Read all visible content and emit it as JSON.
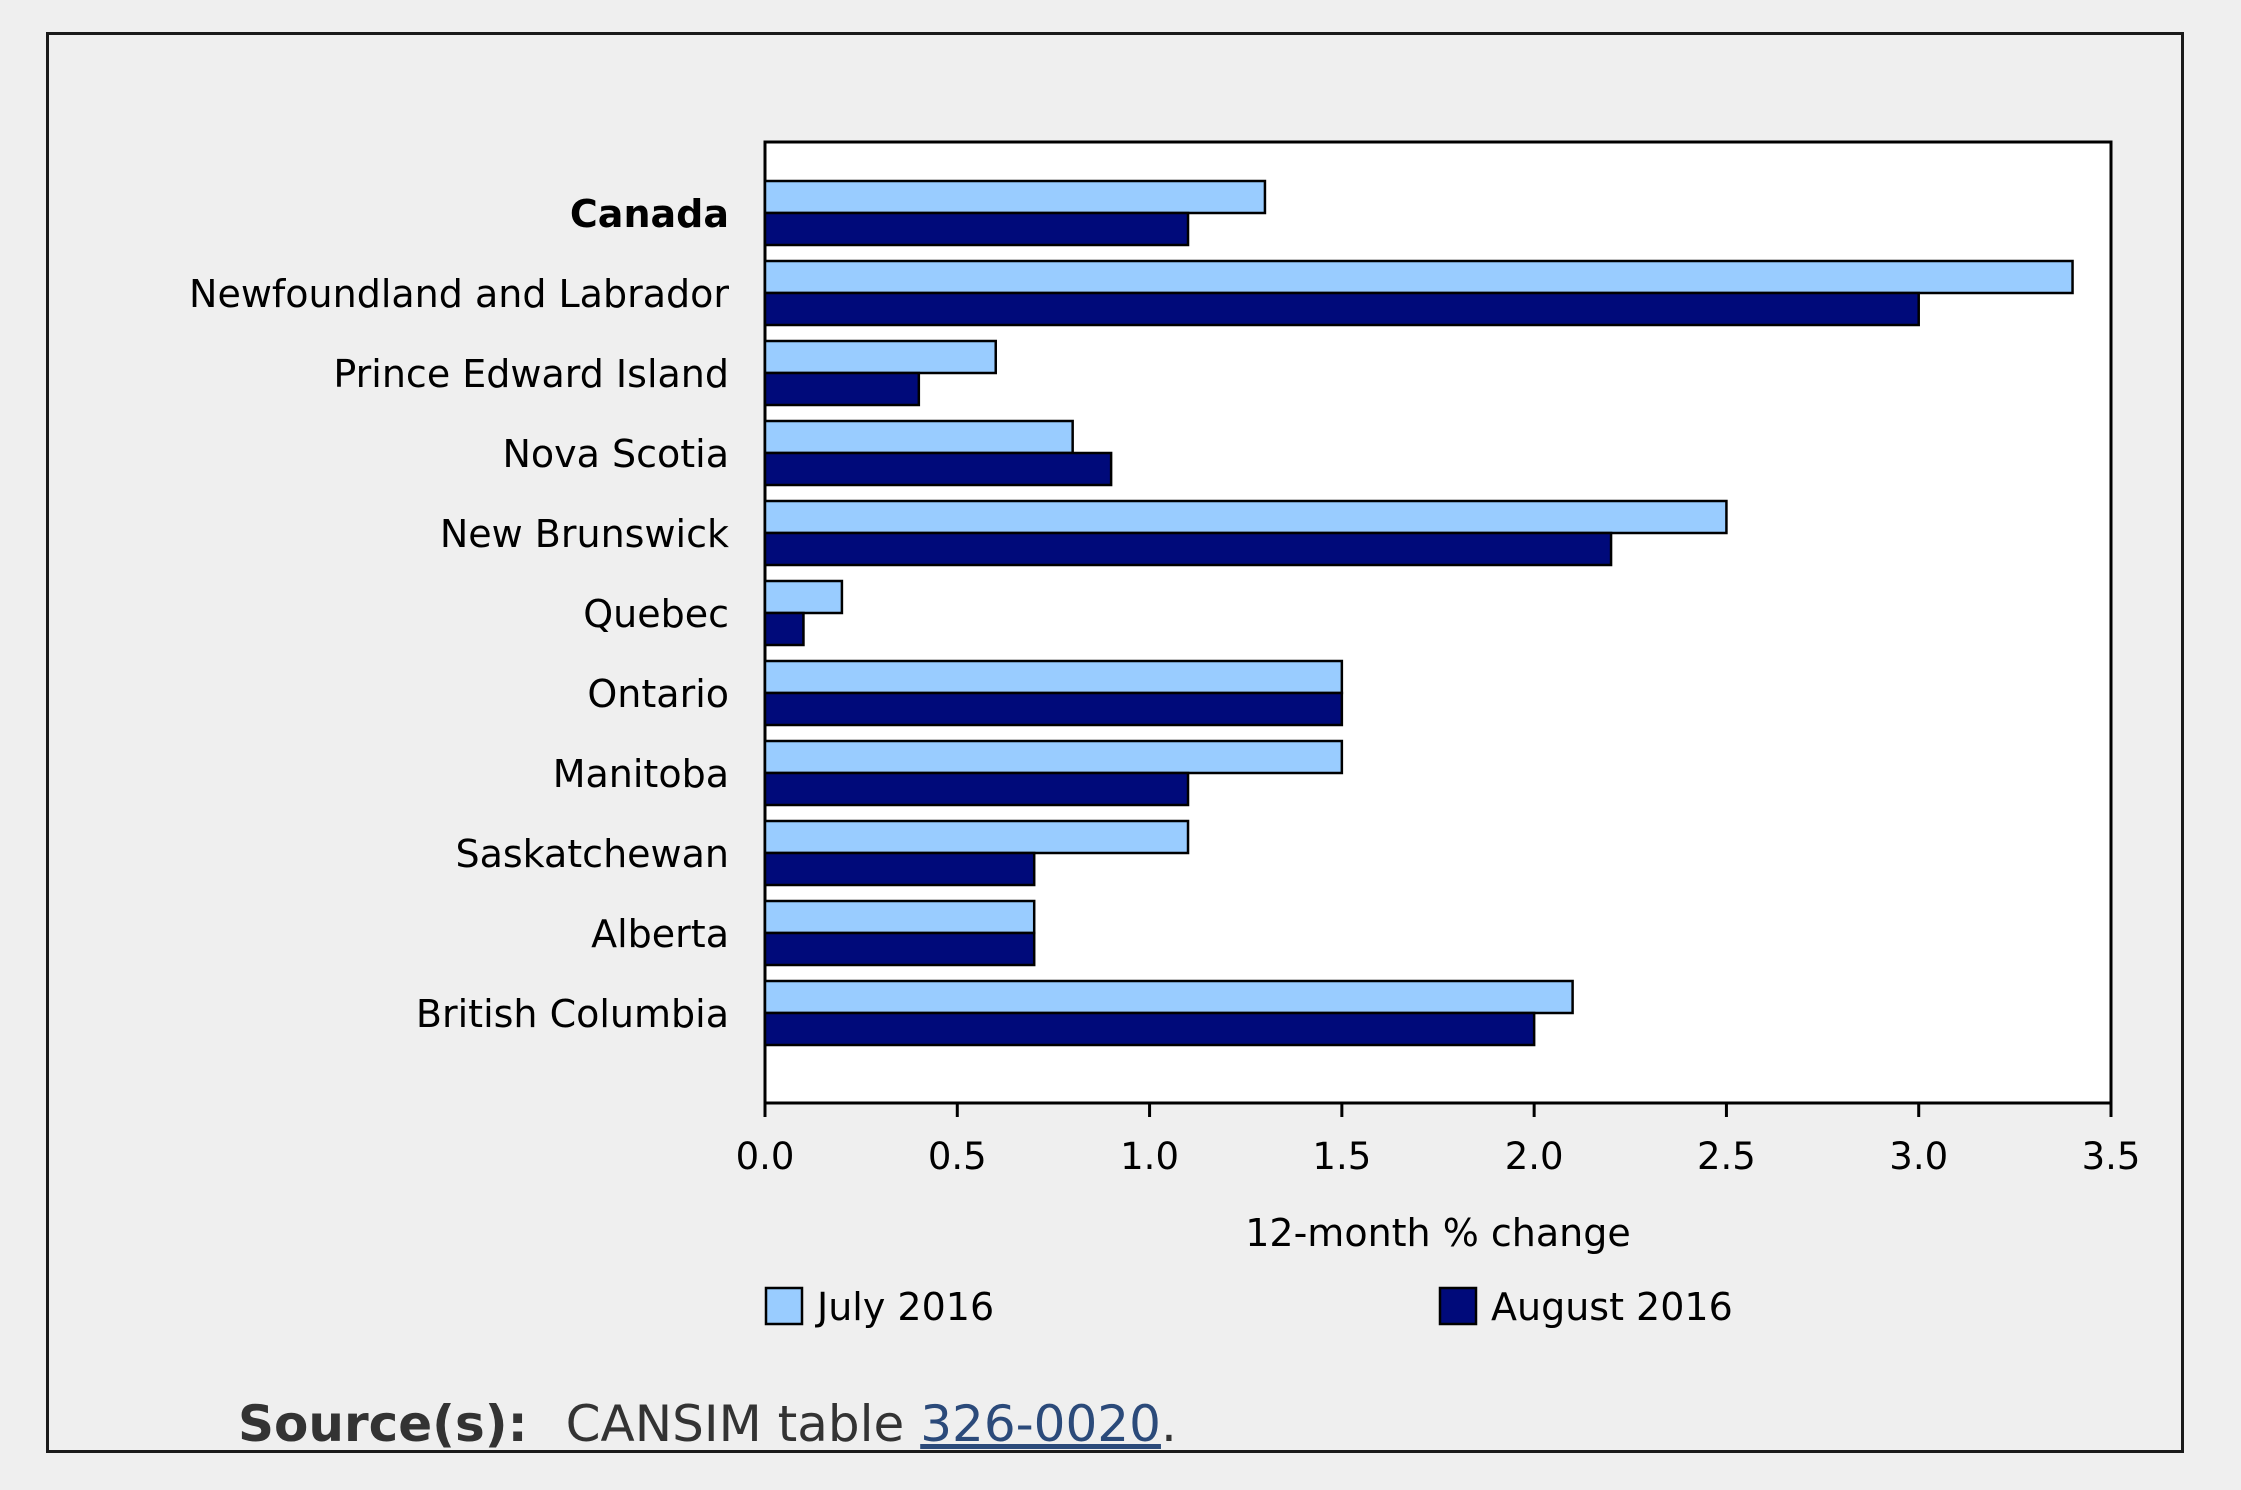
{
  "chart_data": {
    "type": "bar",
    "orientation": "horizontal",
    "categories": [
      "Canada",
      "Newfoundland and Labrador",
      "Prince Edward Island",
      "Nova Scotia",
      "New Brunswick",
      "Quebec",
      "Ontario",
      "Manitoba",
      "Saskatchewan",
      "Alberta",
      "British Columbia"
    ],
    "series": [
      {
        "name": "July 2016",
        "color": "#99ccff",
        "values": [
          1.3,
          3.4,
          0.6,
          0.8,
          2.5,
          0.2,
          1.5,
          1.5,
          1.1,
          0.7,
          2.1
        ]
      },
      {
        "name": "August 2016",
        "color": "#000a7a",
        "values": [
          1.1,
          3.0,
          0.4,
          0.9,
          2.2,
          0.1,
          1.5,
          1.1,
          0.7,
          0.7,
          2.0
        ]
      }
    ],
    "xlabel": "12-month % change",
    "xlim": [
      0.0,
      3.5
    ],
    "xticks": [
      "0.0",
      "0.5",
      "1.0",
      "1.5",
      "2.0",
      "2.5",
      "3.0",
      "3.5"
    ],
    "bold_categories": [
      "Canada"
    ],
    "grid": false,
    "legend_position": "bottom"
  },
  "source": {
    "label": "Source(s):",
    "text": "CANSIM table ",
    "link": "326-0020",
    "end": "."
  }
}
